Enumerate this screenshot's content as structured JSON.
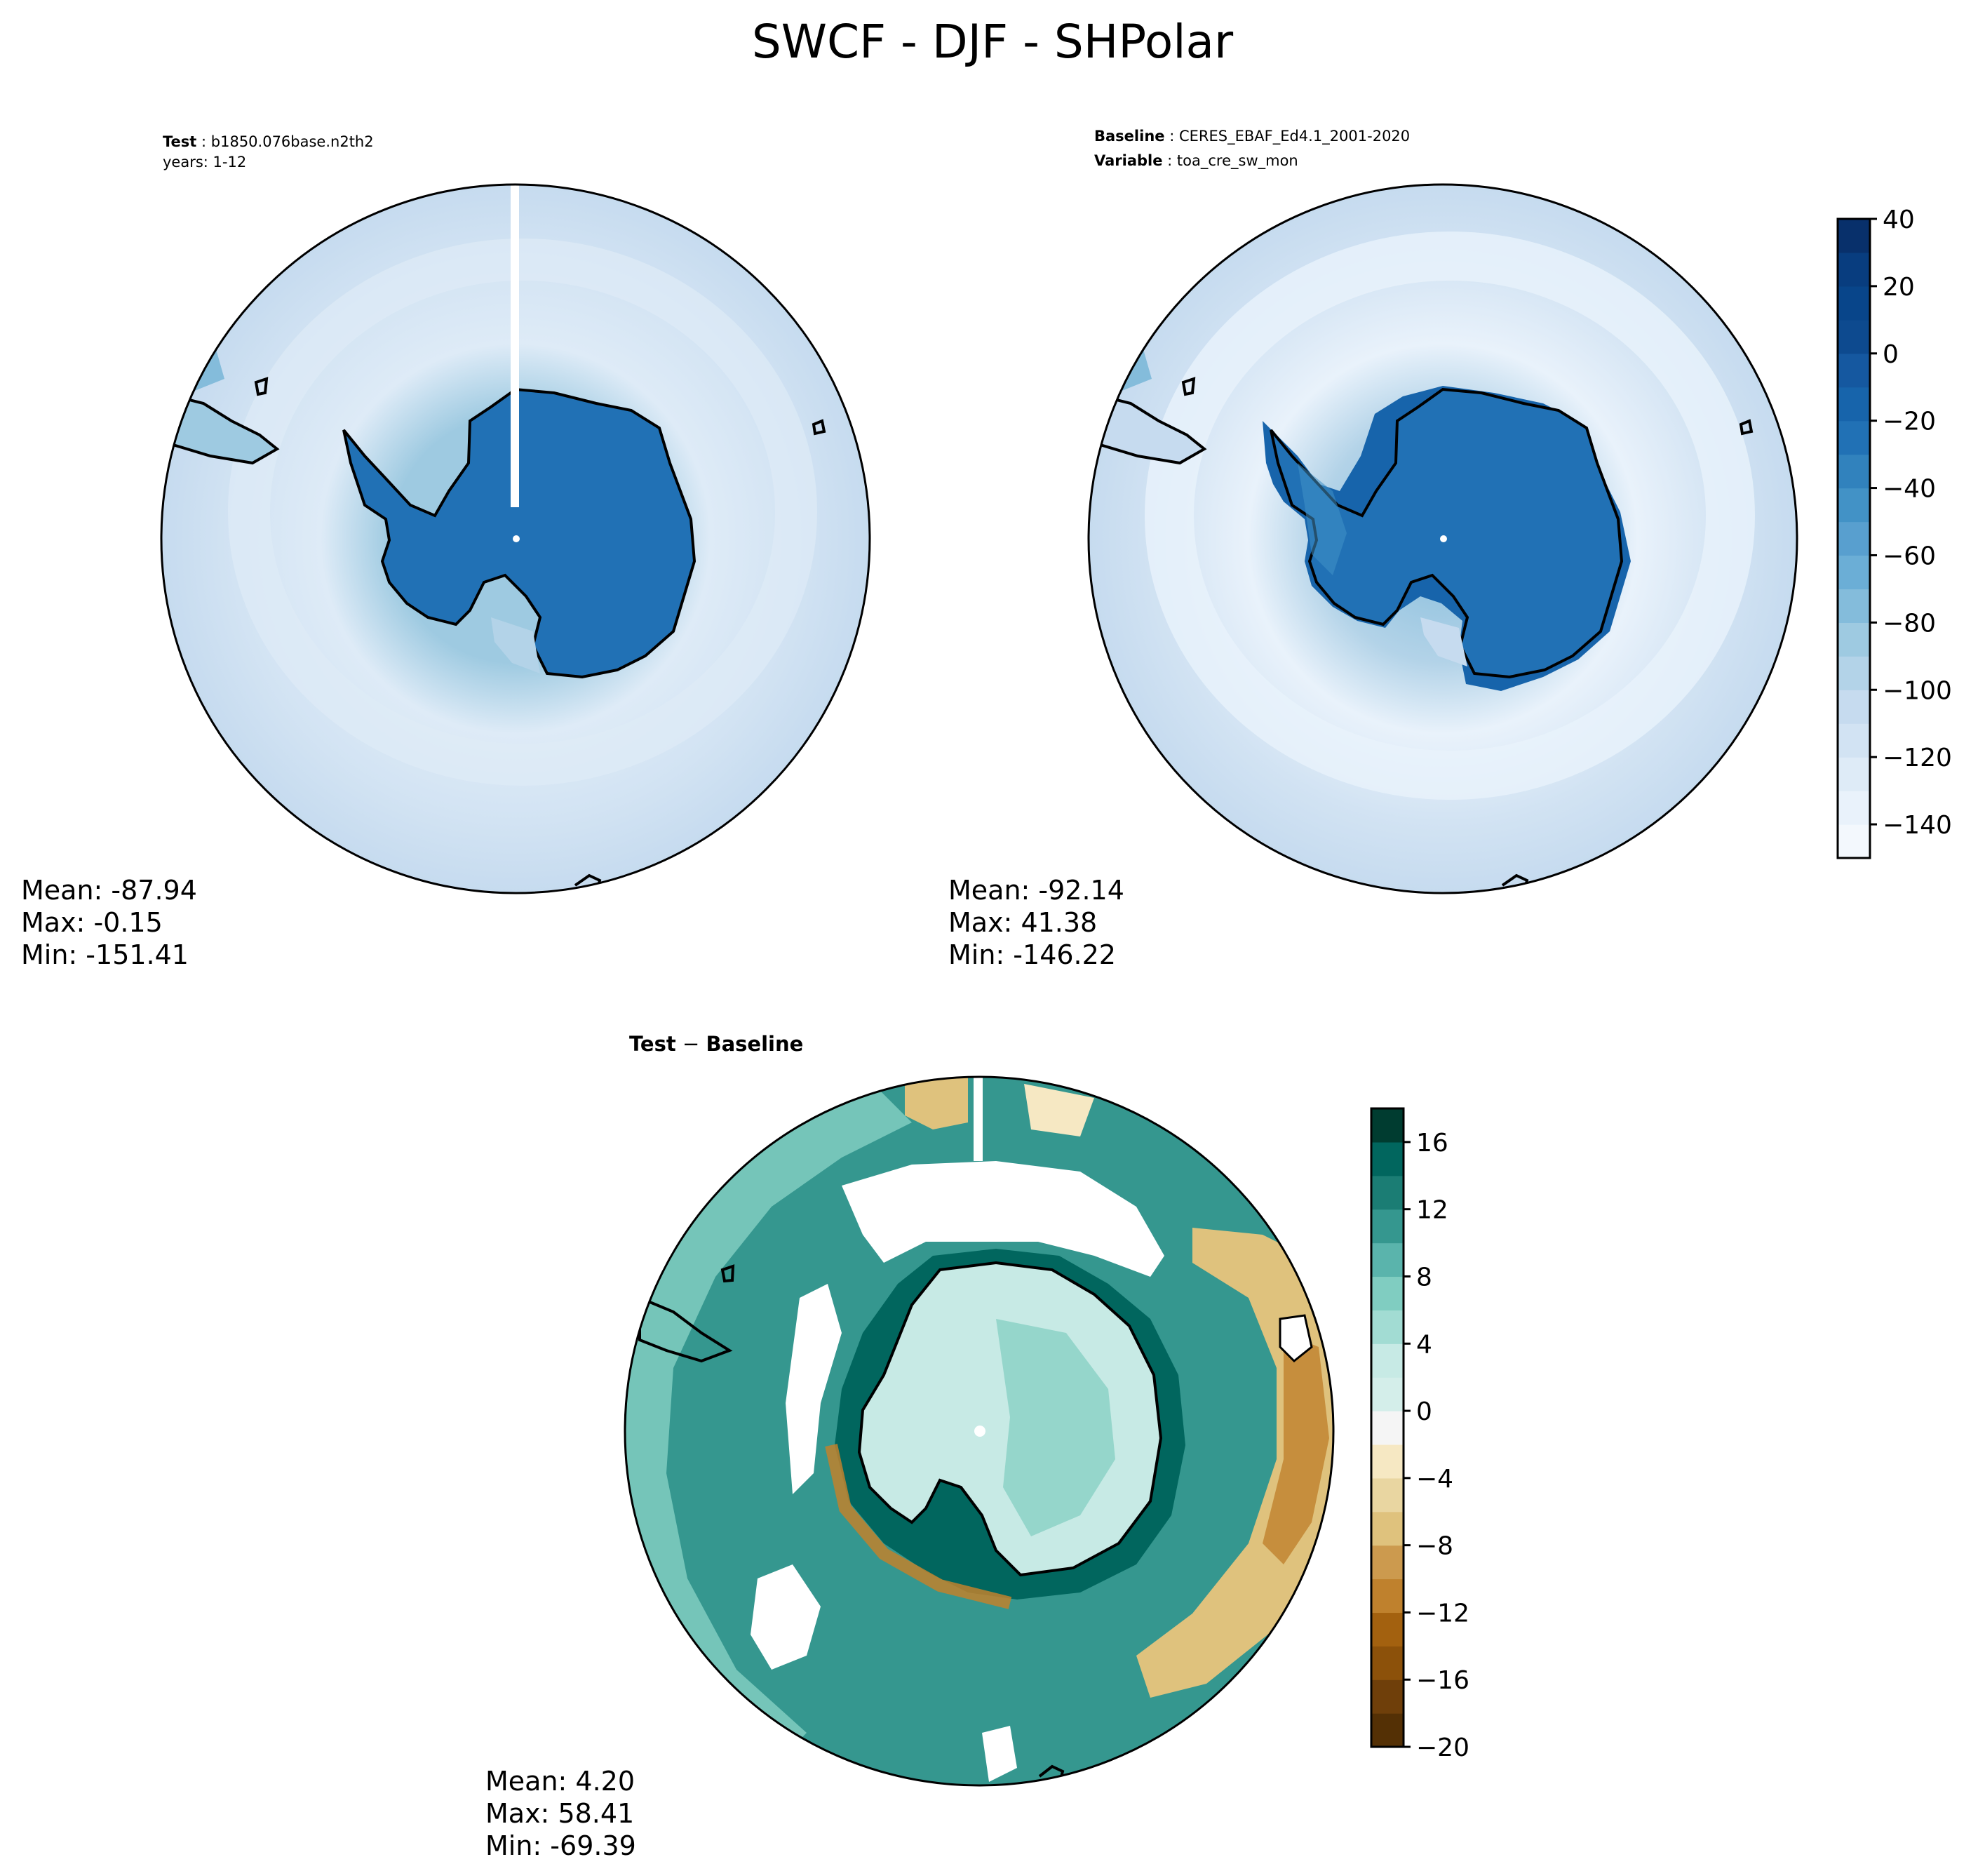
{
  "figure": {
    "title": "SWCF - DJF - SHPolar"
  },
  "chart_data": [
    {
      "type": "heatmap",
      "panel": "test",
      "projection": "south-polar-stereographic",
      "label_key": "Test",
      "label_value": "b1850.076base.n2th2",
      "label_line2": "years: 1-12",
      "stats": {
        "mean": "Mean: -87.94",
        "max": "Max: -0.15",
        "min": "Min: -151.41"
      },
      "colormap": "blues",
      "ocean_value": -110,
      "continent_value": -5
    },
    {
      "type": "heatmap",
      "panel": "baseline",
      "projection": "south-polar-stereographic",
      "label_key": "Baseline",
      "label_value": "CERES_EBAF_Ed4.1_2001-2020",
      "label_key2": "Variable",
      "label_value2": "toa_cre_sw_mon",
      "stats": {
        "mean": "Mean: -92.14",
        "max": "Max: 41.38",
        "min": "Min: -146.22"
      },
      "colormap": "blues",
      "colorbar": {
        "range": [
          -150,
          40
        ],
        "ticks": [
          "40",
          "20",
          "0",
          "−20",
          "−40",
          "−60",
          "−80",
          "−100",
          "−120",
          "−140"
        ],
        "tick_values": [
          40,
          20,
          0,
          -20,
          -40,
          -60,
          -80,
          -100,
          -120,
          -140
        ],
        "levels": 19,
        "colors": [
          "#f3f8fd",
          "#e9f2fb",
          "#deebf7",
          "#d2e3f3",
          "#c6dbef",
          "#b3d3e8",
          "#9ecae1",
          "#84bcdb",
          "#6baed6",
          "#589fcf",
          "#4292c6",
          "#3182bd",
          "#2171b5",
          "#1764ab",
          "#1558a0",
          "#0d4a8f",
          "#08458a",
          "#083d7f",
          "#08306b"
        ]
      }
    },
    {
      "type": "heatmap",
      "panel": "difference",
      "projection": "south-polar-stereographic",
      "label_key": "Test",
      "label_op": " − ",
      "label_key2": "Baseline",
      "stats": {
        "mean": "Mean:  4.20",
        "max": "Max: 58.41",
        "min": "Min: -69.39"
      },
      "colormap": "brbg",
      "colorbar": {
        "range": [
          -20,
          18
        ],
        "ticks": [
          "16",
          "12",
          "8",
          "4",
          "0",
          "−4",
          "−8",
          "−12",
          "−16",
          "−20"
        ],
        "tick_values": [
          16,
          12,
          8,
          4,
          0,
          -4,
          -8,
          -12,
          -16,
          -20
        ],
        "levels": 19,
        "colors": [
          "#543005",
          "#6f3f0a",
          "#8c510a",
          "#a3610f",
          "#bf812d",
          "#cc9a4e",
          "#dfc27d",
          "#e9d6a1",
          "#f6e8c3",
          "#f5f5f5",
          "#d4eeea",
          "#c7eae5",
          "#a2dcd3",
          "#80cdc1",
          "#5ab4ac",
          "#35978f",
          "#1b7d74",
          "#01665e",
          "#003c30"
        ]
      }
    }
  ]
}
